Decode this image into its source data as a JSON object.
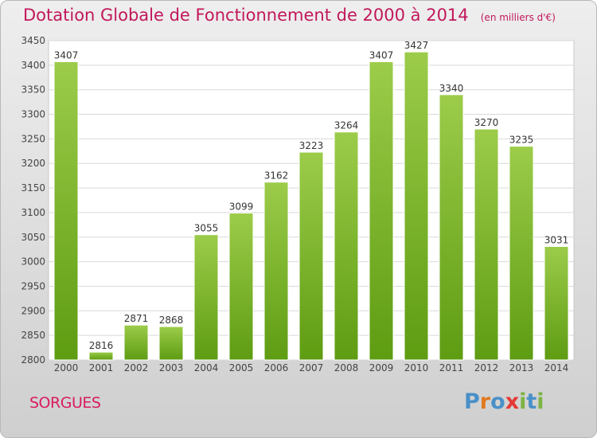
{
  "header": {
    "title": "Dotation Globale de Fonctionnement de 2000 à 2014",
    "unit": "(en milliers d'€)"
  },
  "footer": {
    "commune": "SORGUES",
    "logo_text": "Proxiti",
    "logo_letters": [
      {
        "char": "P",
        "color": "#4a90c8"
      },
      {
        "char": "r",
        "color": "#e07a1f"
      },
      {
        "char": "o",
        "color": "#4a90c8"
      },
      {
        "char": "x",
        "color": "#e53935"
      },
      {
        "char": "i",
        "color": "#7cb342"
      },
      {
        "char": "t",
        "color": "#4a90c8"
      },
      {
        "char": "i",
        "color": "#7cb342"
      }
    ]
  },
  "colors": {
    "bar_top": "#9ccc4a",
    "bar_bottom": "#5e9c12",
    "title": "#c2185b",
    "grid": "#d9d9d9"
  },
  "chart_data": {
    "type": "bar",
    "categories": [
      "2000",
      "2001",
      "2002",
      "2003",
      "2004",
      "2005",
      "2006",
      "2007",
      "2008",
      "2009",
      "2010",
      "2011",
      "2012",
      "2013",
      "2014"
    ],
    "values": [
      3407,
      2816,
      2871,
      2868,
      3055,
      3099,
      3162,
      3223,
      3264,
      3407,
      3427,
      3340,
      3270,
      3235,
      3031
    ],
    "yticks": [
      2800,
      2850,
      2900,
      2950,
      3000,
      3050,
      3100,
      3150,
      3200,
      3250,
      3300,
      3350,
      3400,
      3450
    ],
    "ylim": [
      2800,
      3450
    ],
    "grid": true,
    "legend": "none"
  }
}
